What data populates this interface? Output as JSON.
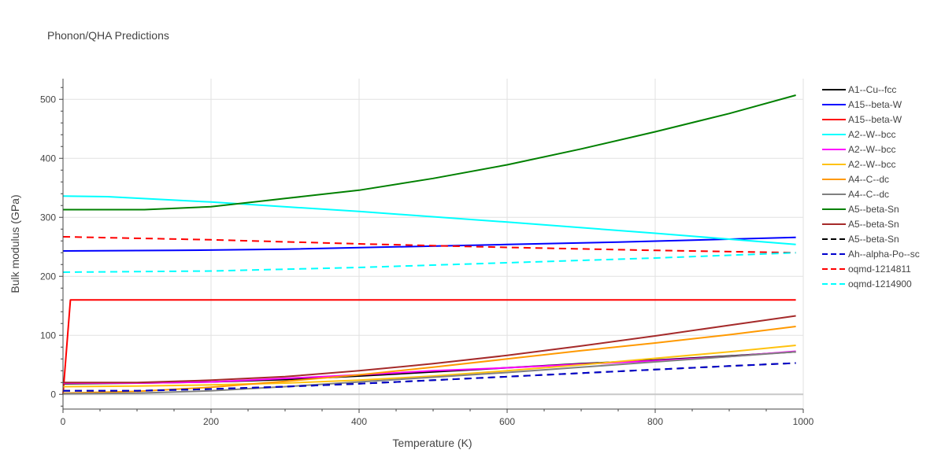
{
  "chart_data": {
    "type": "line",
    "title": "Phonon/QHA Predictions",
    "xlabel": "Temperature (K)",
    "ylabel": "Bulk modulus (GPa)",
    "xlim": [
      0,
      1000
    ],
    "ylim": [
      -25,
      535
    ],
    "xticks": [
      0,
      200,
      400,
      600,
      800,
      1000
    ],
    "yticks": [
      0,
      100,
      200,
      300,
      400,
      500
    ],
    "grid": true,
    "legend_position": "right",
    "series": [
      {
        "name": "A1--Cu--fcc",
        "color": "#000000",
        "dash": "solid",
        "x": [
          0,
          100,
          200,
          300,
          400,
          500,
          600,
          700,
          800,
          900,
          990
        ],
        "y": [
          18,
          19,
          21,
          25,
          31,
          38,
          45,
          52,
          58,
          65,
          72
        ]
      },
      {
        "name": "A15--beta-W",
        "color": "#0000ff",
        "dash": "solid",
        "x": [
          0,
          150,
          300,
          450,
          600,
          750,
          900,
          990
        ],
        "y": [
          243,
          244,
          246,
          250,
          254,
          258,
          263,
          266
        ]
      },
      {
        "name": "A15--beta-W",
        "color": "#ff0000",
        "dash": "solid",
        "x": [
          0,
          10,
          200,
          400,
          600,
          800,
          990
        ],
        "y": [
          0,
          160,
          160,
          160,
          160,
          160,
          160
        ]
      },
      {
        "name": "A2--W--bcc",
        "color": "#00ffff",
        "dash": "solid",
        "x": [
          0,
          60,
          200,
          400,
          600,
          800,
          990
        ],
        "y": [
          336,
          335,
          326,
          310,
          292,
          273,
          254
        ]
      },
      {
        "name": "A2--W--bcc",
        "color": "#ff00ff",
        "dash": "solid",
        "x": [
          0,
          100,
          200,
          300,
          400,
          500,
          600,
          700,
          800,
          900,
          990
        ],
        "y": [
          19,
          19,
          21,
          27,
          33,
          40,
          45,
          51,
          57,
          64,
          73
        ]
      },
      {
        "name": "A2--W--bcc",
        "color": "#ffc20e",
        "dash": "solid",
        "x": [
          0,
          100,
          200,
          300,
          400,
          500,
          600,
          700,
          800,
          900,
          990
        ],
        "y": [
          13,
          14,
          16,
          19,
          24,
          31,
          40,
          50,
          61,
          72,
          83
        ]
      },
      {
        "name": "A4--C--dc",
        "color": "#ff9900",
        "dash": "solid",
        "x": [
          0,
          100,
          200,
          300,
          400,
          500,
          600,
          700,
          800,
          900,
          990
        ],
        "y": [
          2,
          5,
          12,
          22,
          33,
          46,
          60,
          74,
          87,
          101,
          115
        ]
      },
      {
        "name": "A4--C--dc",
        "color": "#808080",
        "dash": "solid",
        "x": [
          0,
          100,
          200,
          300,
          400,
          500,
          600,
          700,
          800,
          900,
          990
        ],
        "y": [
          1,
          2,
          6,
          13,
          21,
          29,
          37,
          46,
          55,
          64,
          72
        ]
      },
      {
        "name": "A5--beta-Sn",
        "color": "#008000",
        "dash": "solid",
        "x": [
          0,
          110,
          200,
          300,
          400,
          500,
          600,
          700,
          800,
          900,
          990
        ],
        "y": [
          313,
          313,
          318,
          332,
          346,
          366,
          389,
          416,
          445,
          476,
          507
        ]
      },
      {
        "name": "A5--beta-Sn",
        "color": "#a52a2a",
        "dash": "solid",
        "x": [
          0,
          100,
          200,
          300,
          400,
          500,
          600,
          700,
          800,
          900,
          990
        ],
        "y": [
          20,
          20,
          24,
          30,
          40,
          52,
          66,
          82,
          99,
          117,
          133
        ]
      },
      {
        "name": "A5--beta-Sn",
        "color": "#000000",
        "dash": "dash",
        "x": [
          0,
          100,
          200,
          300,
          400,
          500,
          600,
          700,
          800,
          900,
          990
        ],
        "y": [
          6,
          6,
          9,
          13,
          18,
          24,
          30,
          36,
          42,
          48,
          53
        ]
      },
      {
        "name": "Ah--alpha-Po--sc",
        "color": "#0000cd",
        "dash": "dash",
        "x": [
          0,
          100,
          200,
          300,
          400,
          500,
          600,
          700,
          800,
          900,
          990
        ],
        "y": [
          6,
          6,
          9,
          13,
          18,
          24,
          30,
          36,
          42,
          48,
          53
        ]
      },
      {
        "name": "oqmd-1214811",
        "color": "#ff0000",
        "dash": "dash",
        "x": [
          0,
          200,
          400,
          600,
          800,
          990
        ],
        "y": [
          267,
          262,
          255,
          249,
          244,
          240
        ]
      },
      {
        "name": "oqmd-1214900",
        "color": "#00ffff",
        "dash": "dash",
        "x": [
          0,
          200,
          400,
          600,
          800,
          990
        ],
        "y": [
          207,
          209,
          215,
          223,
          231,
          240
        ]
      }
    ]
  }
}
